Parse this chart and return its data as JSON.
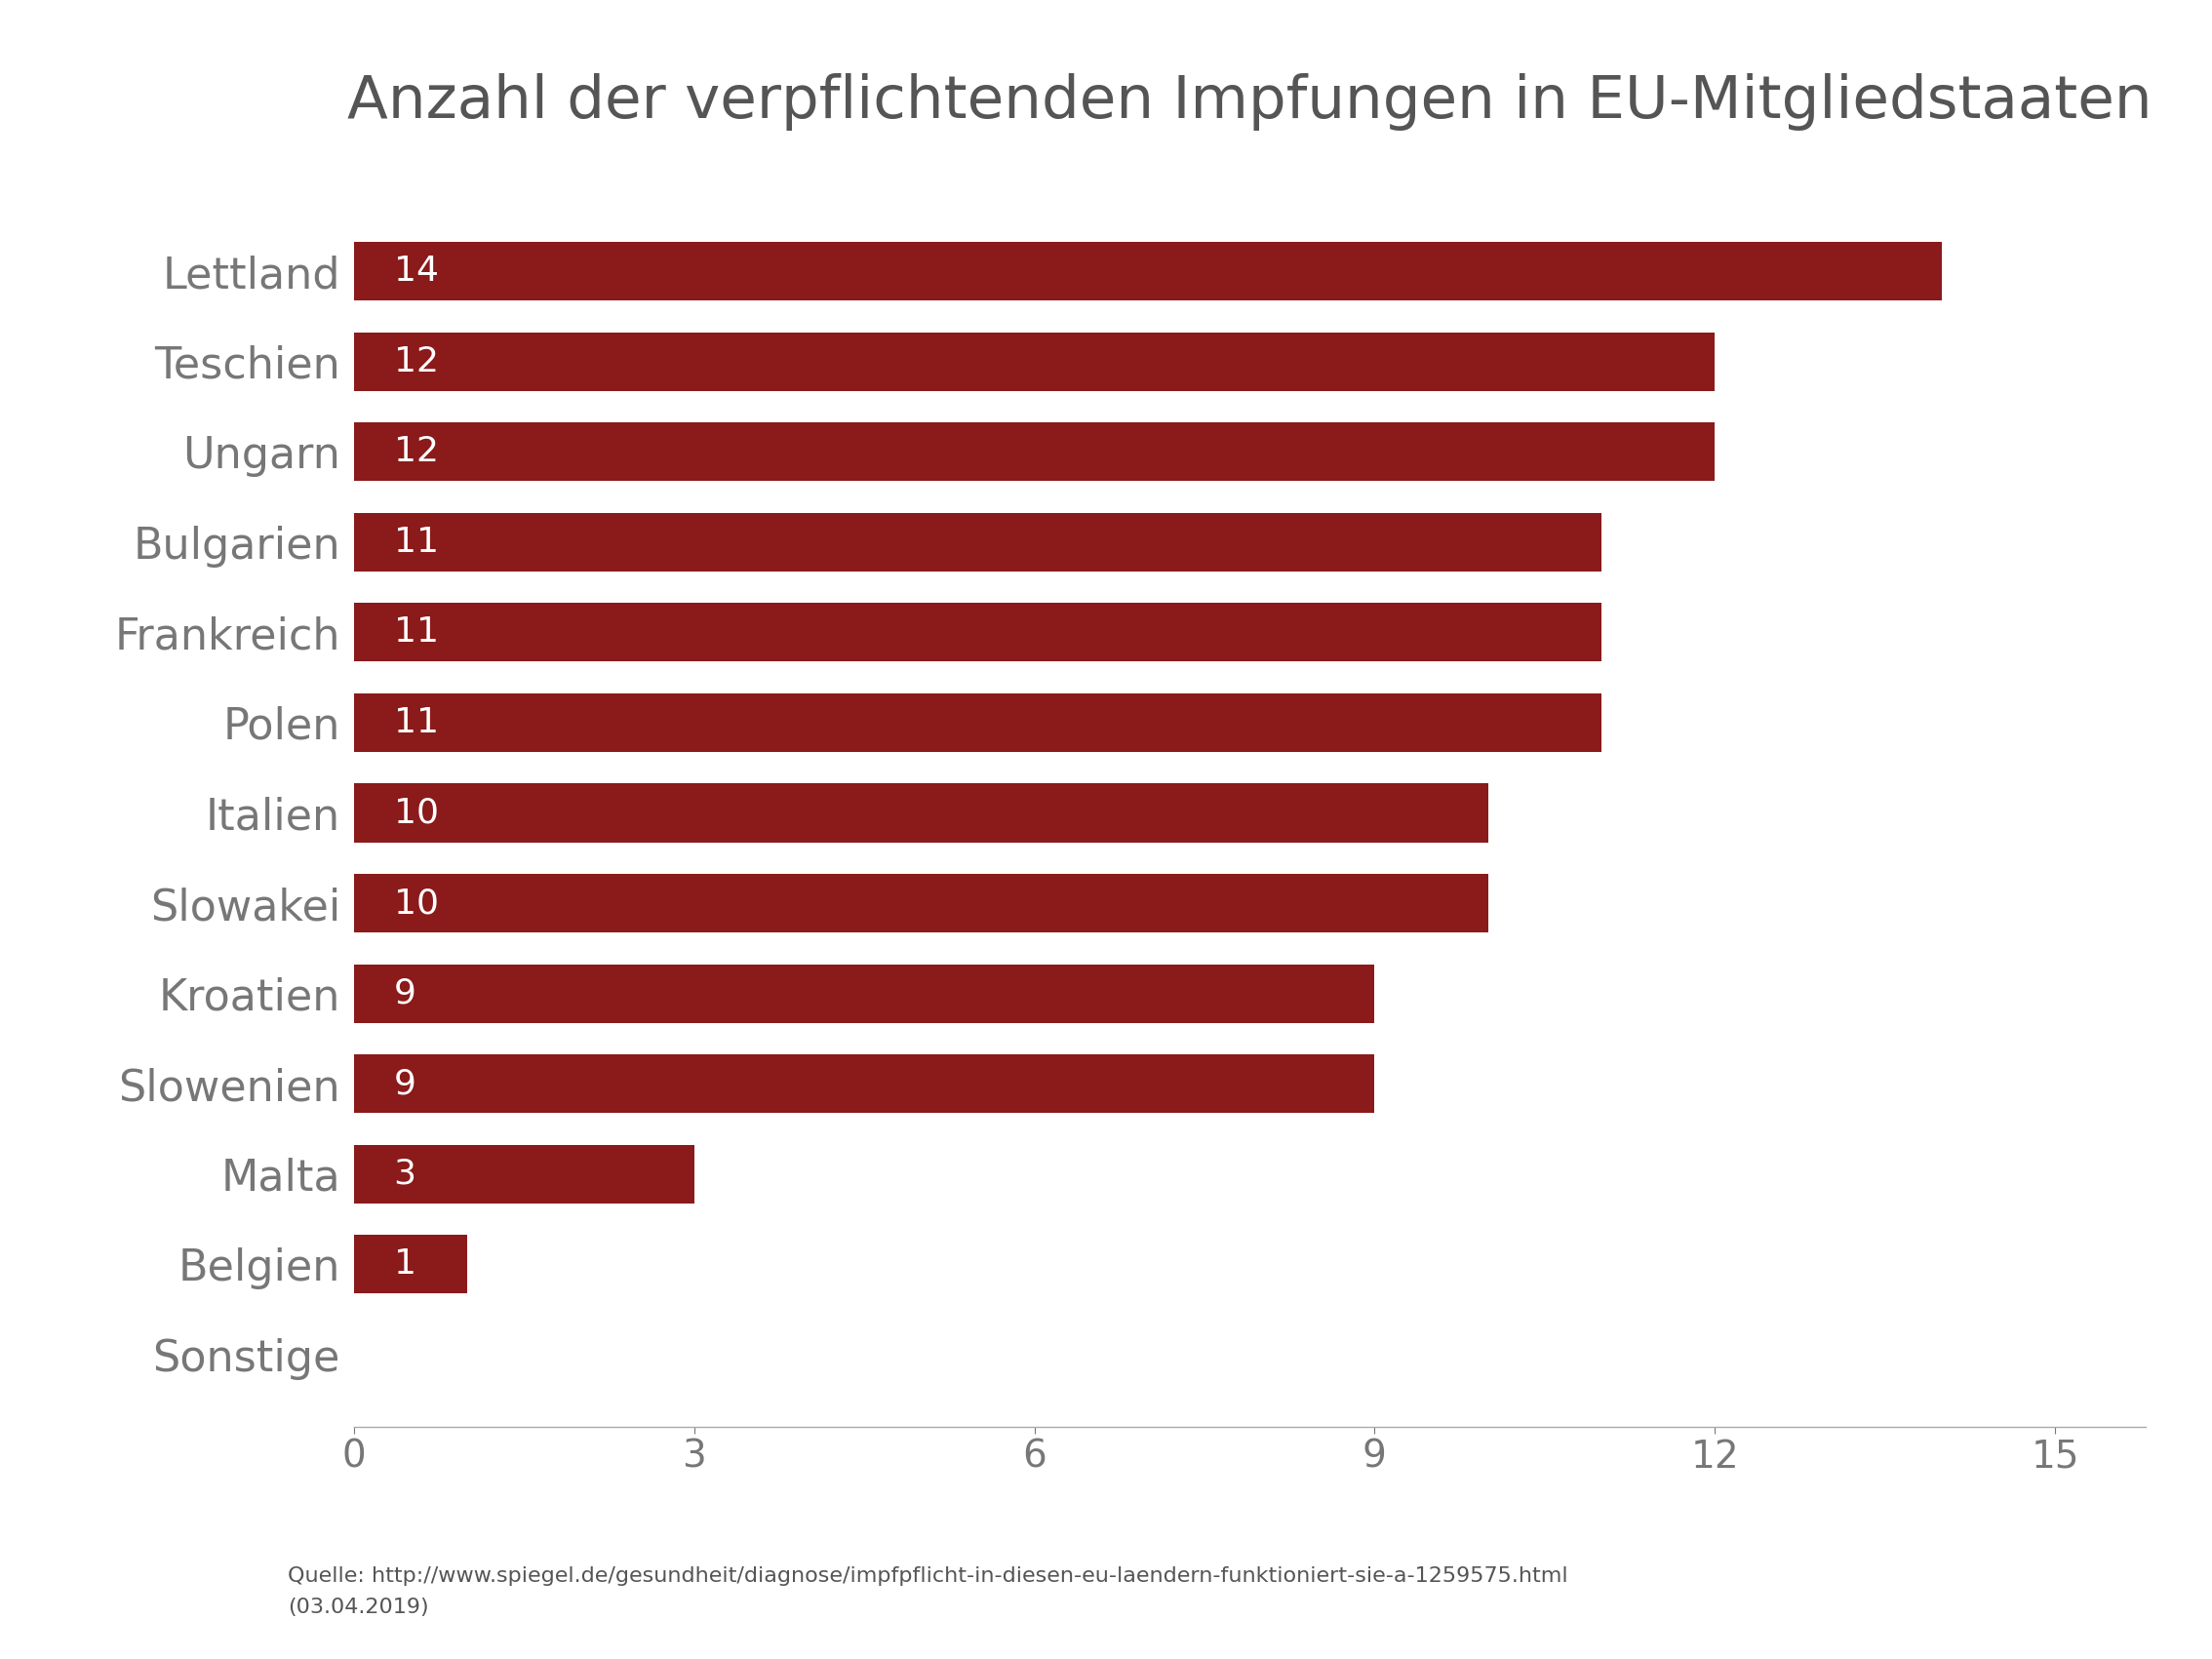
{
  "title": "Anzahl der verpflichtenden Impfungen in EU-Mitgliedstaaten",
  "categories": [
    "Lettland",
    "Teschien",
    "Ungarn",
    "Bulgarien",
    "Frankreich",
    "Polen",
    "Italien",
    "Slowakei",
    "Kroatien",
    "Slowenien",
    "Malta",
    "Belgien",
    "Sonstige"
  ],
  "values": [
    14,
    12,
    12,
    11,
    11,
    11,
    10,
    10,
    9,
    9,
    3,
    1,
    0
  ],
  "bar_color": "#8B1A1A",
  "label_color": "#ffffff",
  "title_color": "#555555",
  "axis_label_color": "#555555",
  "tick_color": "#777777",
  "background_color": "#ffffff",
  "source_text": "Quelle: http://www.spiegel.de/gesundheit/diagnose/impfpflicht-in-diesen-eu-laendern-funktioniert-sie-a-1259575.html\n(03.04.2019)",
  "xlim": [
    0,
    15.8
  ],
  "xticks": [
    0,
    3,
    6,
    9,
    12,
    15
  ],
  "title_fontsize": 44,
  "category_fontsize": 32,
  "value_fontsize": 26,
  "tick_fontsize": 28,
  "source_fontsize": 16,
  "bar_height": 0.65
}
